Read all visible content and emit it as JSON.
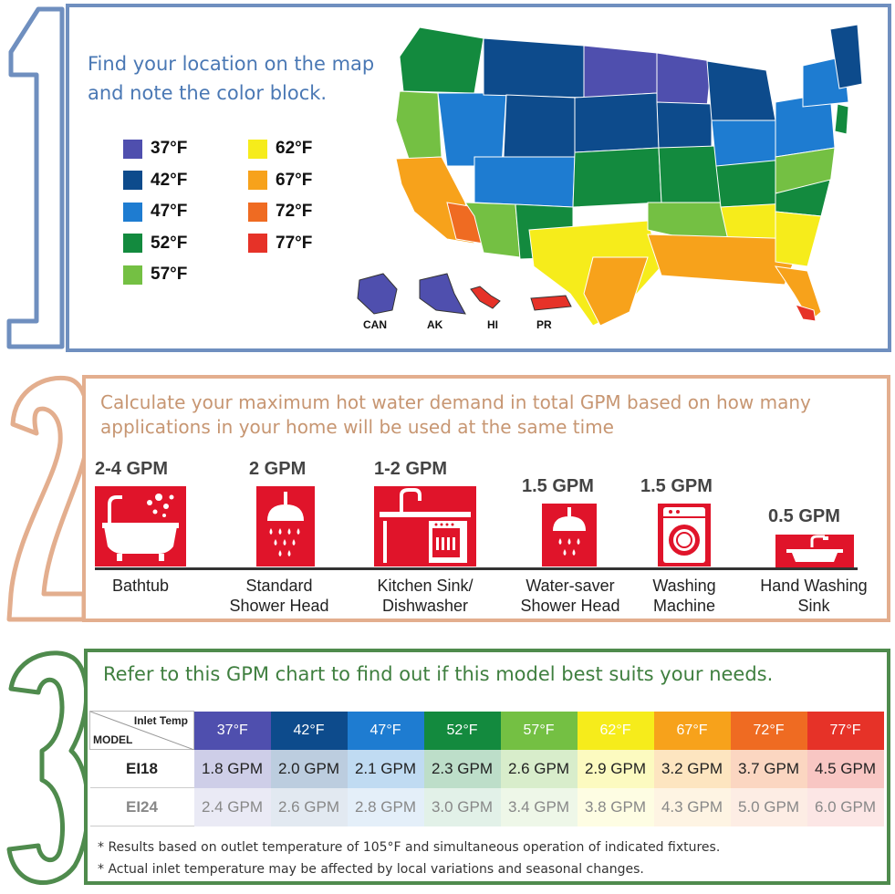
{
  "section1": {
    "step": "1",
    "instruction": "Find your location on the map and note the color block.",
    "legend": [
      {
        "label": "37°F",
        "color": "#4f4fae"
      },
      {
        "label": "42°F",
        "color": "#0d4b8c"
      },
      {
        "label": "47°F",
        "color": "#1e7cd1"
      },
      {
        "label": "52°F",
        "color": "#138a3e"
      },
      {
        "label": "57°F",
        "color": "#74c043"
      },
      {
        "label": "62°F",
        "color": "#f6ec1b"
      },
      {
        "label": "67°F",
        "color": "#f7a21b"
      },
      {
        "label": "72°F",
        "color": "#ef6b22"
      },
      {
        "label": "77°F",
        "color": "#e63228"
      }
    ],
    "territories": [
      "CAN",
      "AK",
      "HI",
      "PR"
    ]
  },
  "section2": {
    "step": "2",
    "instruction": "Calculate your maximum hot water demand in total GPM based on how many applications in your home will be used at the same time",
    "fixtures": [
      {
        "gpm": "2-4 GPM",
        "name_line1": "Bathtub",
        "name_line2": "",
        "icon": "bathtub-icon"
      },
      {
        "gpm": "2 GPM",
        "name_line1": "Standard",
        "name_line2": "Shower Head",
        "icon": "shower-head-icon"
      },
      {
        "gpm": "1-2 GPM",
        "name_line1": "Kitchen Sink/",
        "name_line2": "Dishwasher",
        "icon": "kitchen-sink-icon"
      },
      {
        "gpm": "1.5 GPM",
        "name_line1": "Water-saver",
        "name_line2": "Shower Head",
        "icon": "water-saver-shower-icon"
      },
      {
        "gpm": "1.5 GPM",
        "name_line1": "Washing",
        "name_line2": "Machine",
        "icon": "washing-machine-icon"
      },
      {
        "gpm": "0.5 GPM",
        "name_line1": "Hand Washing",
        "name_line2": "Sink",
        "icon": "hand-sink-icon"
      }
    ]
  },
  "section3": {
    "step": "3",
    "instruction": "Refer to this GPM chart to find out if this model best suits your needs.",
    "corner_top": "Inlet Temp",
    "corner_bottom": "MODEL",
    "temps": [
      "37°F",
      "42°F",
      "47°F",
      "52°F",
      "57°F",
      "62°F",
      "67°F",
      "72°F",
      "77°F"
    ],
    "rows": [
      {
        "model": "EI18",
        "values": [
          "1.8 GPM",
          "2.0 GPM",
          "2.1 GPM",
          "2.3 GPM",
          "2.6 GPM",
          "2.9 GPM",
          "3.2 GPM",
          "3.7 GPM",
          "4.5 GPM"
        ]
      },
      {
        "model": "EI24",
        "values": [
          "2.4 GPM",
          "2.6 GPM",
          "2.8 GPM",
          "3.0 GPM",
          "3.4 GPM",
          "3.8 GPM",
          "4.3 GPM",
          "5.0 GPM",
          "6.0 GPM"
        ]
      }
    ],
    "footnotes": [
      "* Results based on outlet temperature of 105°F and simultaneous operation of indicated fixtures.",
      "* Actual inlet temperature may be affected by local variations and seasonal changes."
    ]
  }
}
